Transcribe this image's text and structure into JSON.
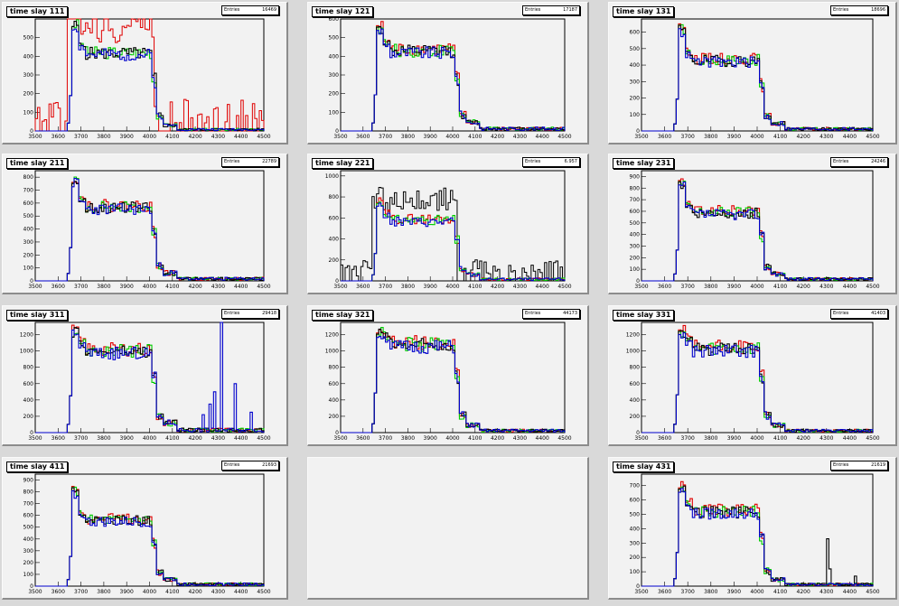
{
  "page": {
    "background": "#d9d9d9",
    "pad_color": "#f2f2f2"
  },
  "colors": {
    "red": "#e00000",
    "green": "#00cc00",
    "blue": "#0000cc",
    "black": "#000000"
  },
  "chart_data": [
    {
      "type": "line",
      "title": "time slay 111",
      "stats": {
        "label": "Entries",
        "value": "16469"
      },
      "xlim": [
        3500,
        4500
      ],
      "ylim": [
        0,
        600
      ],
      "yticks": [
        0,
        100,
        200,
        300,
        400,
        500
      ],
      "xticks": [
        3500,
        3600,
        3700,
        3800,
        3900,
        4000,
        4100,
        4200,
        4300,
        4400,
        4500
      ],
      "profile": {
        "plateau": 420,
        "peak": 600,
        "tail": 10,
        "noise_series": "red",
        "noise_level": 170
      }
    },
    {
      "type": "line",
      "title": "time slay 121",
      "stats": {
        "label": "Entries",
        "value": "17187"
      },
      "xlim": [
        3500,
        4500
      ],
      "ylim": [
        0,
        600
      ],
      "yticks": [
        0,
        100,
        200,
        300,
        400,
        500,
        600
      ],
      "xticks": [
        3500,
        3600,
        3700,
        3800,
        3900,
        4000,
        4100,
        4200,
        4300,
        4400,
        4500
      ],
      "profile": {
        "plateau": 430,
        "peak": 580,
        "tail": 15
      }
    },
    {
      "type": "line",
      "title": "time slay 131",
      "stats": {
        "label": "Entries",
        "value": "18696"
      },
      "xlim": [
        3500,
        4500
      ],
      "ylim": [
        0,
        680
      ],
      "yticks": [
        0,
        100,
        200,
        300,
        400,
        500,
        600
      ],
      "xticks": [
        3500,
        3600,
        3700,
        3800,
        3900,
        4000,
        4100,
        4200,
        4300,
        4400,
        4500
      ],
      "profile": {
        "plateau": 430,
        "peak": 650,
        "tail": 15
      }
    },
    {
      "type": "line",
      "title": "time slay 211",
      "stats": {
        "label": "Entries",
        "value": "22789"
      },
      "xlim": [
        3500,
        4500
      ],
      "ylim": [
        0,
        850
      ],
      "yticks": [
        0,
        100,
        200,
        300,
        400,
        500,
        600,
        700,
        800
      ],
      "xticks": [
        3500,
        3600,
        3700,
        3800,
        3900,
        4000,
        4100,
        4200,
        4300,
        4400,
        4500
      ],
      "profile": {
        "plateau": 570,
        "peak": 820,
        "tail": 20
      }
    },
    {
      "type": "line",
      "title": "time slay 221",
      "stats": {
        "label": "Entries",
        "value": "6.957"
      },
      "xlim": [
        3500,
        4500
      ],
      "ylim": [
        0,
        1050
      ],
      "yticks": [
        0,
        200,
        400,
        600,
        800,
        1000
      ],
      "xticks": [
        3500,
        3600,
        3700,
        3800,
        3900,
        4000,
        4100,
        4200,
        4300,
        4400,
        4500
      ],
      "profile": {
        "plateau": 580,
        "peak": 780,
        "tail": 20,
        "noise_series": "black",
        "noise_level": 200
      }
    },
    {
      "type": "line",
      "title": "time slay 231",
      "stats": {
        "label": "Entries",
        "value": "24246"
      },
      "xlim": [
        3500,
        4500
      ],
      "ylim": [
        0,
        950
      ],
      "yticks": [
        0,
        100,
        200,
        300,
        400,
        500,
        600,
        700,
        800,
        900
      ],
      "xticks": [
        3500,
        3600,
        3700,
        3800,
        3900,
        4000,
        4100,
        4200,
        4300,
        4400,
        4500
      ],
      "profile": {
        "plateau": 590,
        "peak": 880,
        "tail": 20
      }
    },
    {
      "type": "line",
      "title": "time slay 311",
      "stats": {
        "label": "Entries",
        "value": "29418"
      },
      "xlim": [
        3500,
        4500
      ],
      "ylim": [
        0,
        1350
      ],
      "yticks": [
        0,
        200,
        400,
        600,
        800,
        1000,
        1200
      ],
      "xticks": [
        3500,
        3600,
        3700,
        3800,
        3900,
        4000,
        4100,
        4200,
        4300,
        4400,
        4500
      ],
      "profile": {
        "plateau": 1000,
        "peak": 1300,
        "tail": 40,
        "spike_series": "blue"
      }
    },
    {
      "type": "line",
      "title": "time slay 321",
      "stats": {
        "label": "Entries",
        "value": "44173"
      },
      "xlim": [
        3500,
        4500
      ],
      "ylim": [
        0,
        1350
      ],
      "yticks": [
        0,
        200,
        400,
        600,
        800,
        1000,
        1200
      ],
      "xticks": [
        3500,
        3600,
        3700,
        3800,
        3900,
        4000,
        4100,
        4200,
        4300,
        4400,
        4500
      ],
      "profile": {
        "plateau": 1080,
        "peak": 1300,
        "tail": 30
      }
    },
    {
      "type": "line",
      "title": "time slay 331",
      "stats": {
        "label": "Entries",
        "value": "41403"
      },
      "xlim": [
        3500,
        4500
      ],
      "ylim": [
        0,
        1350
      ],
      "yticks": [
        0,
        200,
        400,
        600,
        800,
        1000,
        1200
      ],
      "xticks": [
        3500,
        3600,
        3700,
        3800,
        3900,
        4000,
        4100,
        4200,
        4300,
        4400,
        4500
      ],
      "profile": {
        "plateau": 1030,
        "peak": 1300,
        "tail": 30
      }
    },
    {
      "type": "line",
      "title": "time slay 411",
      "stats": {
        "label": "Entries",
        "value": "21693"
      },
      "xlim": [
        3500,
        4500
      ],
      "ylim": [
        0,
        950
      ],
      "yticks": [
        0,
        100,
        200,
        300,
        400,
        500,
        600,
        700,
        800,
        900
      ],
      "xticks": [
        3500,
        3600,
        3700,
        3800,
        3900,
        4000,
        4100,
        4200,
        4300,
        4400,
        4500
      ],
      "profile": {
        "plateau": 560,
        "peak": 850,
        "tail": 20
      }
    },
    null,
    {
      "type": "line",
      "title": "time slay 431",
      "stats": {
        "label": "Entries",
        "value": "21619"
      },
      "xlim": [
        3500,
        4500
      ],
      "ylim": [
        0,
        780
      ],
      "yticks": [
        0,
        100,
        200,
        300,
        400,
        500,
        600,
        700
      ],
      "xticks": [
        3500,
        3600,
        3700,
        3800,
        3900,
        4000,
        4100,
        4200,
        4300,
        4400,
        4500
      ],
      "profile": {
        "plateau": 520,
        "peak": 720,
        "tail": 15,
        "late_spike": true
      }
    }
  ]
}
